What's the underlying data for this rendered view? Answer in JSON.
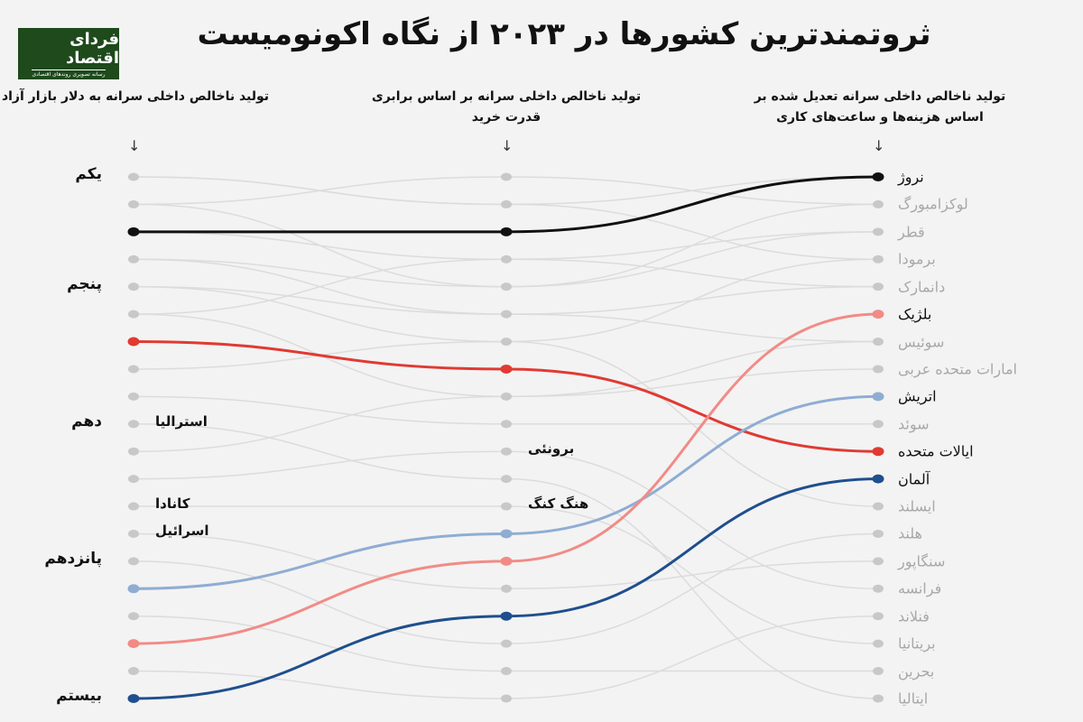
{
  "title": "ثروتمندترین کشورها در ۲۰۲۳ از نگاه اکونومیست",
  "logo": {
    "name": "فردای اقتصاد",
    "tagline": "رسانه تصویری روندهای اقتصادی",
    "color": "#1e4a1c"
  },
  "chart_data": {
    "type": "bump",
    "columns": [
      {
        "label": "تولید ناخالص داخلی سرانه به دلار بازار آزاد"
      },
      {
        "label": "تولید ناخالص داخلی سرانه بر اساس برابری قدرت خرید"
      },
      {
        "label": "تولید ناخالص داخلی سرانه تعدیل شده بر اساس هزینه‌ها و ساعت‌های کاری"
      }
    ],
    "rank_labels": [
      {
        "rank": 1,
        "label": "یکم"
      },
      {
        "rank": 5,
        "label": "پنجم"
      },
      {
        "rank": 10,
        "label": "دهم"
      },
      {
        "rank": 15,
        "label": "پانزدهم"
      },
      {
        "rank": 20,
        "label": "بیستم"
      }
    ],
    "final_ranking": [
      "نروژ",
      "لوکزامبورگ",
      "قطر",
      "برمودا",
      "دانمارک",
      "بلژیک",
      "سوئیس",
      "امارات متحده عربی",
      "اتریش",
      "سوئد",
      "ایالات متحده",
      "آلمان",
      "ایسلند",
      "هلند",
      "سنگاپور",
      "فرانسه",
      "فنلاند",
      "بریتانیا",
      "بحرین",
      "ایتالیا"
    ],
    "highlighted_series": [
      {
        "name": "نروژ",
        "ranks": [
          3,
          3,
          1
        ],
        "color": "#111111"
      },
      {
        "name": "ایالات متحده",
        "ranks": [
          7,
          8,
          11
        ],
        "color": "#e03a33"
      },
      {
        "name": "اتریش",
        "ranks": [
          16,
          14,
          9
        ],
        "color": "#8fadd3"
      },
      {
        "name": "بلژیک",
        "ranks": [
          18,
          15,
          6
        ],
        "color": "#f28b86"
      },
      {
        "name": "آلمان",
        "ranks": [
          20,
          17,
          12
        ],
        "color": "#1f4f8d"
      }
    ],
    "annotations": [
      {
        "text": "استرالیا",
        "column": 1,
        "rank": 10
      },
      {
        "text": "کانادا",
        "column": 1,
        "rank": 13
      },
      {
        "text": "اسرائیل",
        "column": 1,
        "rank": 14
      },
      {
        "text": "برونئی",
        "column": 2,
        "rank": 11
      },
      {
        "text": "هنگ کنگ",
        "column": 2,
        "rank": 13
      }
    ],
    "muted_color": "#c8c8c8"
  }
}
